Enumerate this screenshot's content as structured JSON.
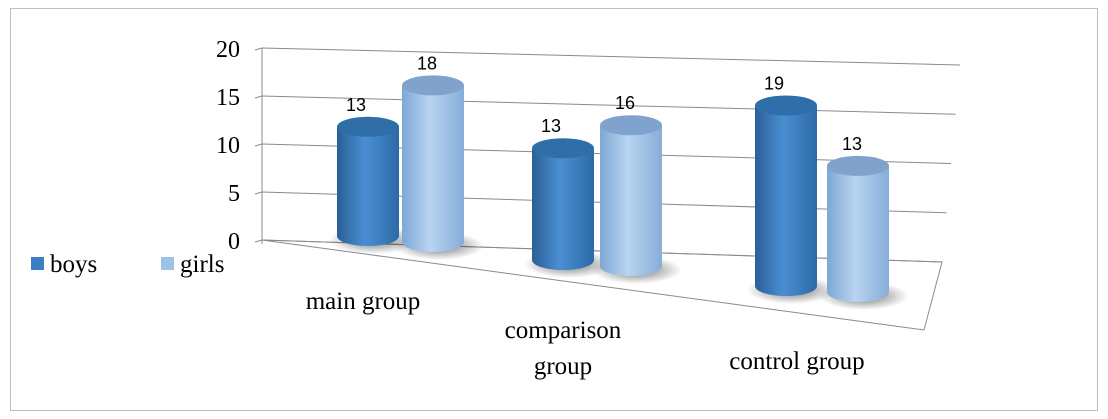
{
  "chart_data": {
    "type": "bar",
    "style": "3d-cylinder",
    "categories": [
      "main group",
      "comparison group",
      "control group"
    ],
    "series": [
      {
        "name": "boys",
        "values": [
          13,
          13,
          19
        ],
        "color": "#3a7fc1"
      },
      {
        "name": "girls",
        "values": [
          18,
          16,
          13
        ],
        "color": "#9ec1e6"
      }
    ],
    "y_ticks": [
      "0",
      "5",
      "10",
      "15",
      "20"
    ],
    "ylim": [
      0,
      20
    ],
    "grid": true,
    "legend_position": "left"
  }
}
